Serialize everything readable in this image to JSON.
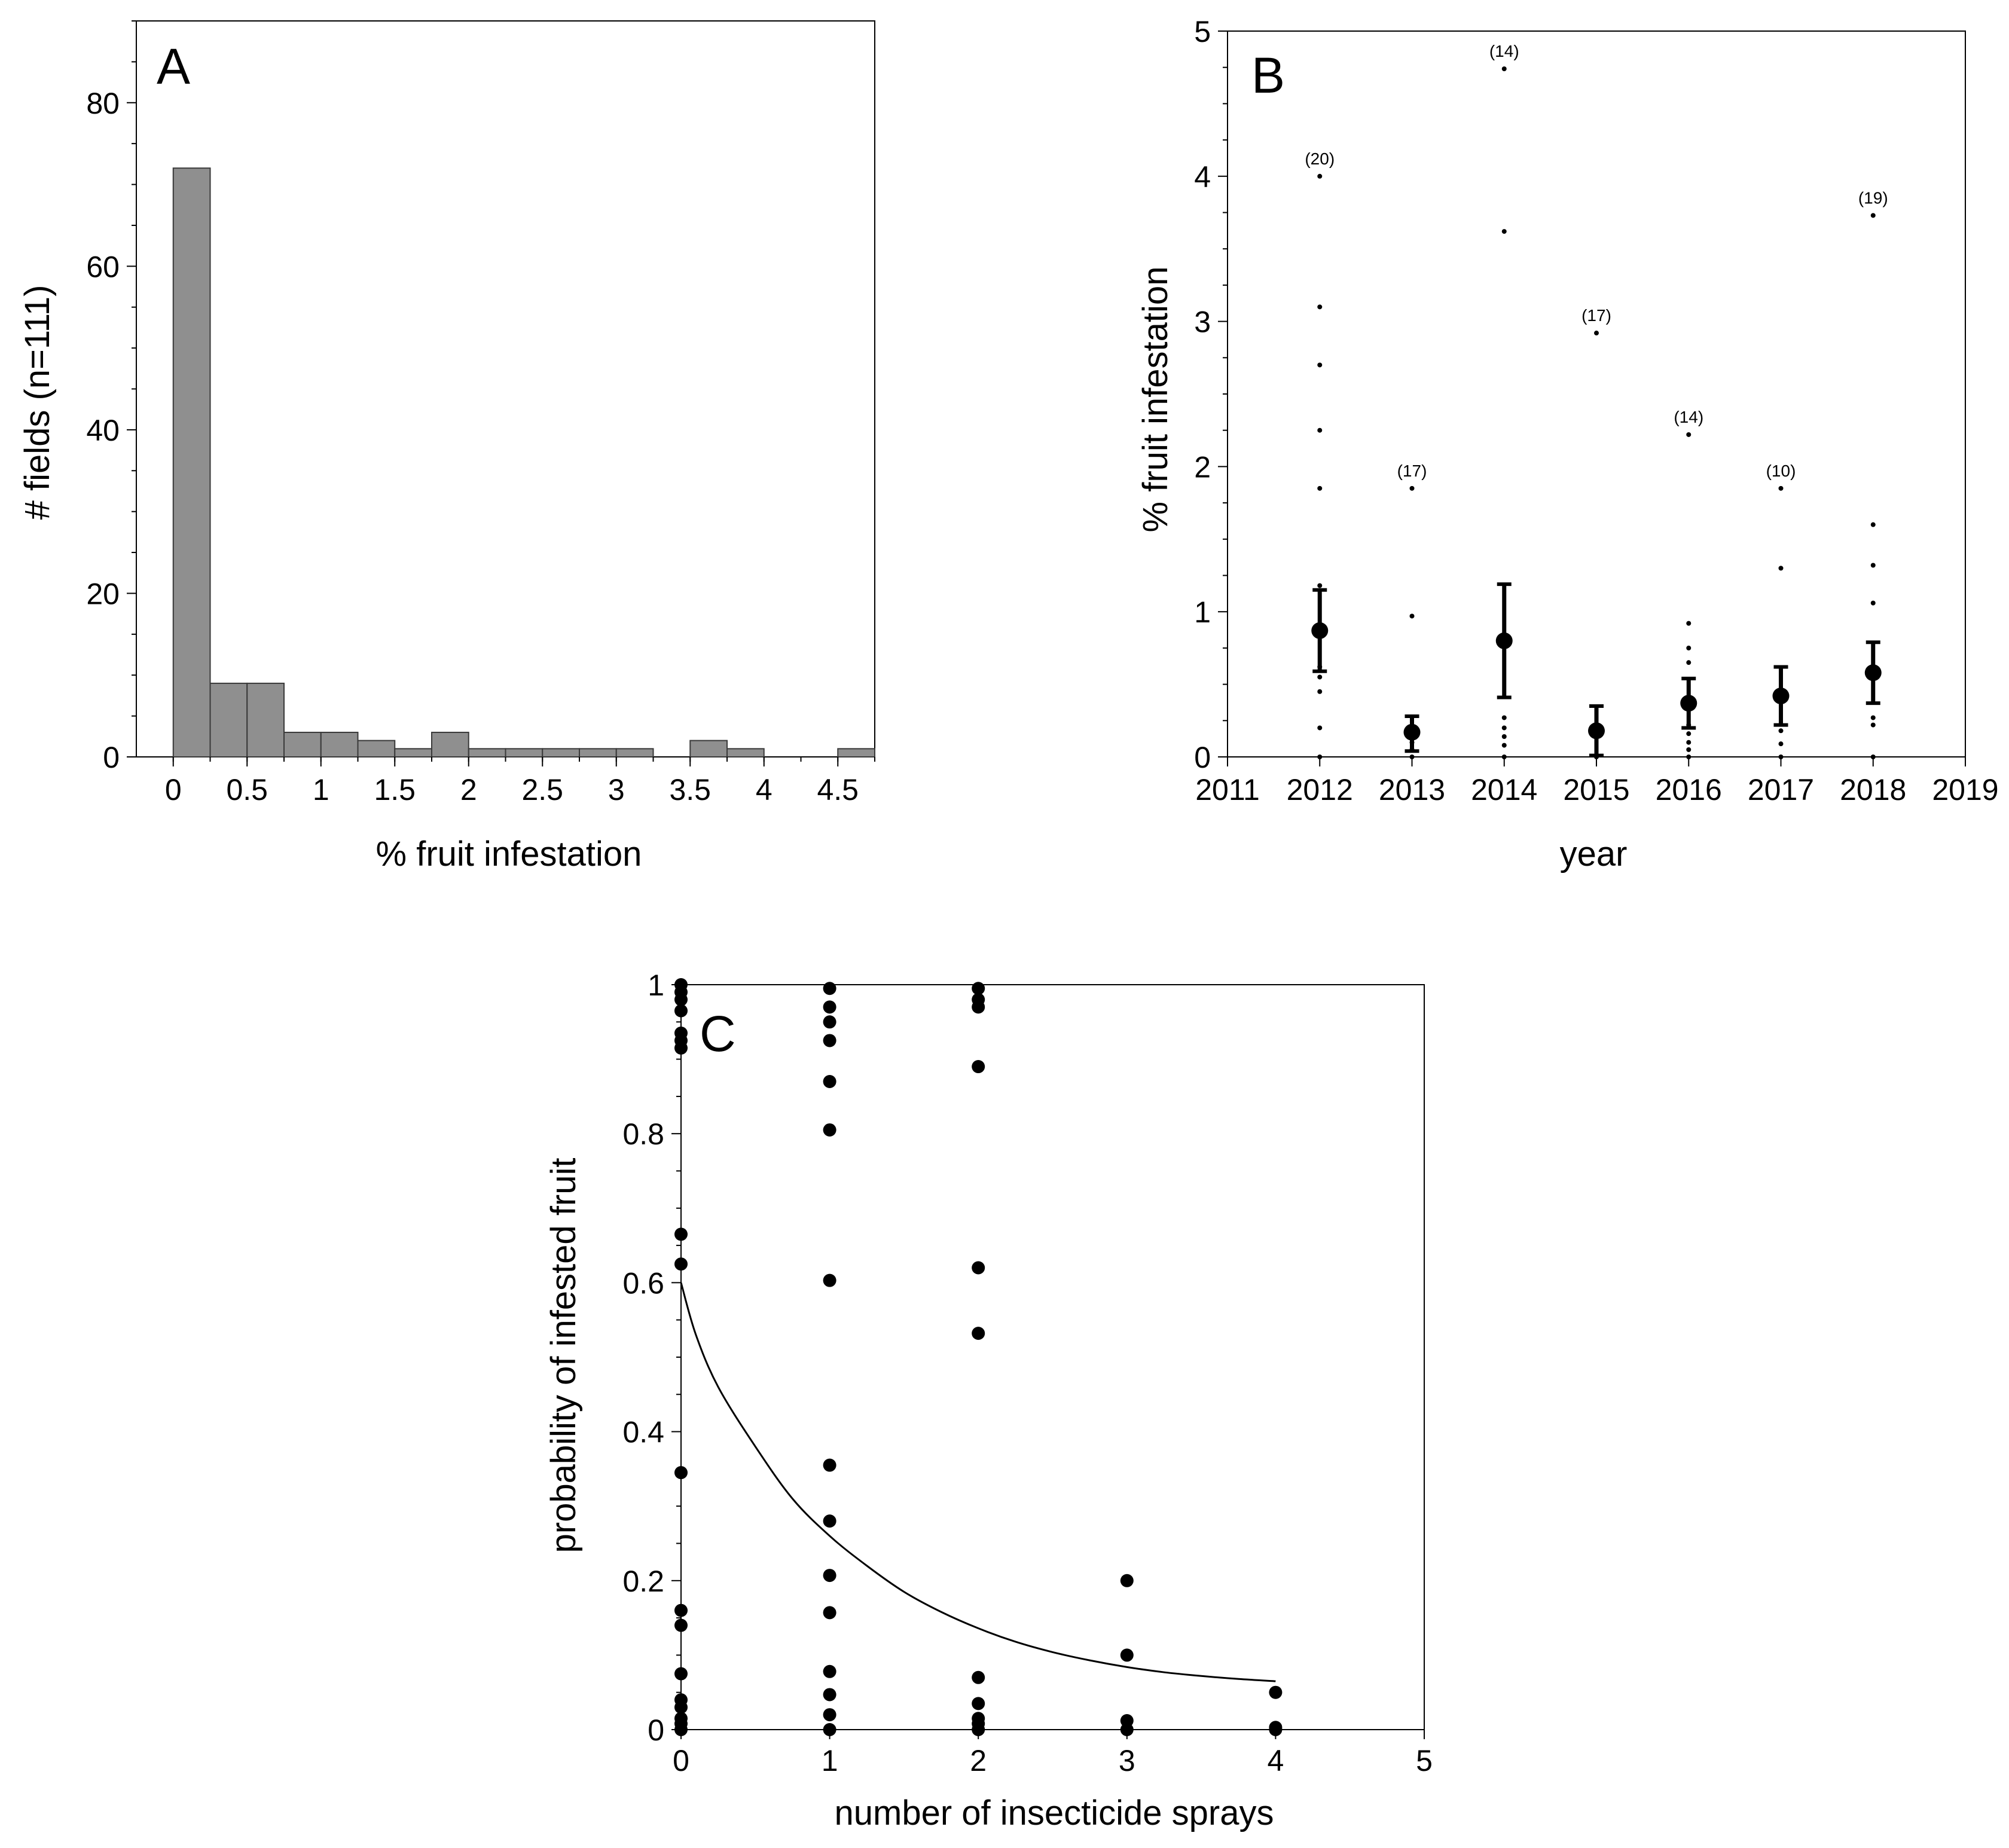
{
  "chart_data": [
    {
      "panel": "A",
      "type": "bar",
      "title": "",
      "xlabel": "% fruit infestation",
      "ylabel": "# fields (n=111)",
      "bin_width": 0.25,
      "bin_starts": [
        0,
        0.25,
        0.5,
        0.75,
        1.0,
        1.25,
        1.5,
        1.75,
        2.0,
        2.25,
        2.5,
        2.75,
        3.0,
        3.25,
        3.5,
        3.75,
        4.0,
        4.25,
        4.5
      ],
      "values": [
        72,
        9,
        9,
        3,
        3,
        2,
        1,
        3,
        1,
        1,
        1,
        1,
        1,
        0,
        2,
        1,
        0,
        0,
        1
      ],
      "xlim": [
        -0.25,
        4.75
      ],
      "ylim": [
        0,
        90
      ],
      "x_ticks": [
        "0",
        "0.5",
        "1",
        "1.5",
        "2",
        "2.5",
        "3",
        "3.5",
        "4",
        "4.5"
      ],
      "y_ticks": [
        "0",
        "20",
        "40",
        "60",
        "80"
      ],
      "bar_color": "#8f8f8f"
    },
    {
      "panel": "B",
      "type": "scatter",
      "title": "",
      "xlabel": "year",
      "ylabel": "% fruit infestation",
      "xlim": [
        2011,
        2019
      ],
      "ylim": [
        0,
        5
      ],
      "x_ticks": [
        "2011",
        "2012",
        "2013",
        "2014",
        "2015",
        "2016",
        "2017",
        "2018",
        "2019"
      ],
      "y_ticks": [
        "0",
        "1",
        "2",
        "3",
        "4",
        "5"
      ],
      "groups": [
        {
          "year": 2012,
          "n_label": "(20)",
          "mean": 0.87,
          "lower": 0.59,
          "upper": 1.15,
          "points": [
            0,
            0.2,
            0.45,
            0.55,
            0.62,
            1.18,
            1.85,
            2.25,
            2.7,
            3.1,
            4.0
          ]
        },
        {
          "year": 2013,
          "n_label": "(17)",
          "mean": 0.17,
          "lower": 0.04,
          "upper": 0.28,
          "points": [
            0,
            0.05,
            0.1,
            0.97,
            1.85
          ]
        },
        {
          "year": 2014,
          "n_label": "(14)",
          "mean": 0.8,
          "lower": 0.41,
          "upper": 1.19,
          "points": [
            0,
            0.08,
            0.14,
            0.2,
            0.27,
            3.62,
            4.74
          ]
        },
        {
          "year": 2015,
          "n_label": "(17)",
          "mean": 0.18,
          "lower": 0.01,
          "upper": 0.35,
          "points": [
            0,
            2.92
          ]
        },
        {
          "year": 2016,
          "n_label": "(14)",
          "mean": 0.37,
          "lower": 0.2,
          "upper": 0.54,
          "points": [
            0,
            0.05,
            0.1,
            0.16,
            0.22,
            0.65,
            0.75,
            0.92,
            2.22
          ]
        },
        {
          "year": 2017,
          "n_label": "(10)",
          "mean": 0.42,
          "lower": 0.22,
          "upper": 0.62,
          "points": [
            0,
            0.09,
            0.18,
            1.3,
            1.85
          ]
        },
        {
          "year": 2018,
          "n_label": "(19)",
          "mean": 0.58,
          "lower": 0.37,
          "upper": 0.79,
          "points": [
            0,
            0.22,
            0.27,
            1.06,
            1.32,
            1.6,
            3.73
          ]
        }
      ]
    },
    {
      "panel": "C",
      "type": "scatter",
      "title": "",
      "xlabel": "number of insecticide sprays",
      "ylabel": "probability of infested fruit",
      "xlim": [
        0,
        5
      ],
      "ylim": [
        0,
        1
      ],
      "x_ticks": [
        "0",
        "1",
        "2",
        "3",
        "4",
        "5"
      ],
      "y_ticks": [
        "0",
        "0.2",
        "0.4",
        "0.6",
        "0.8",
        "1"
      ],
      "points": [
        {
          "x": 0,
          "y": 1.0
        },
        {
          "x": 0,
          "y": 0.99
        },
        {
          "x": 0,
          "y": 0.98
        },
        {
          "x": 0,
          "y": 0.965
        },
        {
          "x": 0,
          "y": 0.935
        },
        {
          "x": 0,
          "y": 0.925
        },
        {
          "x": 0,
          "y": 0.915
        },
        {
          "x": 0,
          "y": 0.665
        },
        {
          "x": 0,
          "y": 0.625
        },
        {
          "x": 0,
          "y": 0.345
        },
        {
          "x": 0,
          "y": 0.16
        },
        {
          "x": 0,
          "y": 0.14
        },
        {
          "x": 0,
          "y": 0.075
        },
        {
          "x": 0,
          "y": 0.04
        },
        {
          "x": 0,
          "y": 0.03
        },
        {
          "x": 0,
          "y": 0.015
        },
        {
          "x": 0,
          "y": 0.008
        },
        {
          "x": 0,
          "y": 0.0
        },
        {
          "x": 1,
          "y": 0.995
        },
        {
          "x": 1,
          "y": 0.97
        },
        {
          "x": 1,
          "y": 0.95
        },
        {
          "x": 1,
          "y": 0.925
        },
        {
          "x": 1,
          "y": 0.87
        },
        {
          "x": 1,
          "y": 0.805
        },
        {
          "x": 1,
          "y": 0.603
        },
        {
          "x": 1,
          "y": 0.355
        },
        {
          "x": 1,
          "y": 0.28
        },
        {
          "x": 1,
          "y": 0.207
        },
        {
          "x": 1,
          "y": 0.157
        },
        {
          "x": 1,
          "y": 0.078
        },
        {
          "x": 1,
          "y": 0.047
        },
        {
          "x": 1,
          "y": 0.02
        },
        {
          "x": 1,
          "y": 0.0
        },
        {
          "x": 2,
          "y": 0.995
        },
        {
          "x": 2,
          "y": 0.98
        },
        {
          "x": 2,
          "y": 0.97
        },
        {
          "x": 2,
          "y": 0.89
        },
        {
          "x": 2,
          "y": 0.62
        },
        {
          "x": 2,
          "y": 0.532
        },
        {
          "x": 2,
          "y": 0.07
        },
        {
          "x": 2,
          "y": 0.035
        },
        {
          "x": 2,
          "y": 0.015
        },
        {
          "x": 2,
          "y": 0.008
        },
        {
          "x": 2,
          "y": 0.0
        },
        {
          "x": 3,
          "y": 0.2
        },
        {
          "x": 3,
          "y": 0.1
        },
        {
          "x": 3,
          "y": 0.012
        },
        {
          "x": 3,
          "y": 0.0
        },
        {
          "x": 4,
          "y": 0.05
        },
        {
          "x": 4,
          "y": 0.003
        },
        {
          "x": 4,
          "y": 0.0
        }
      ],
      "fit_curve": {
        "x": [
          0,
          0.1,
          0.25,
          0.5,
          0.75,
          1.0,
          1.25,
          1.5,
          1.75,
          2.0,
          2.25,
          2.5,
          2.75,
          3.0,
          3.25,
          3.5,
          3.75,
          4.0
        ],
        "y": [
          0.6,
          0.53,
          0.46,
          0.38,
          0.31,
          0.26,
          0.22,
          0.185,
          0.158,
          0.136,
          0.118,
          0.104,
          0.093,
          0.084,
          0.077,
          0.072,
          0.068,
          0.065
        ]
      }
    }
  ]
}
